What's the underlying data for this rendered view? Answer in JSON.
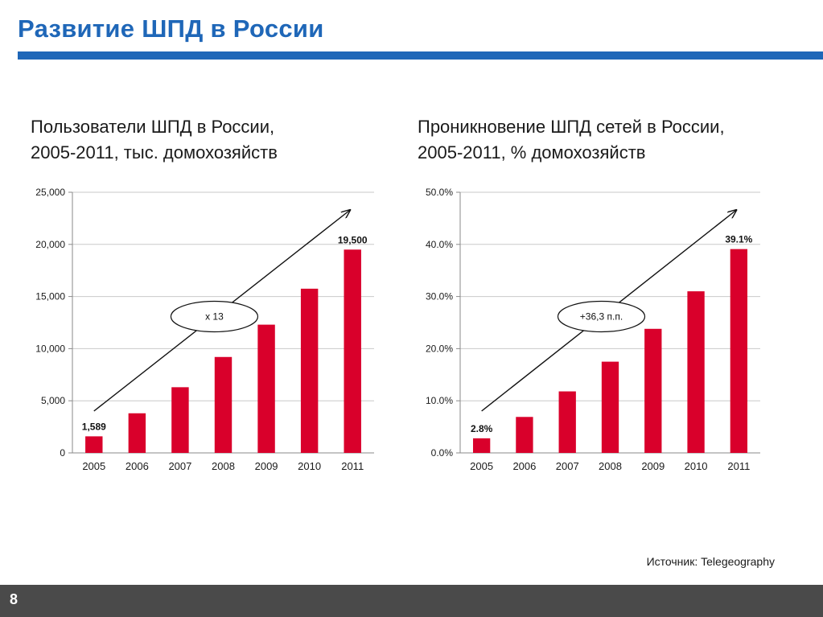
{
  "slide": {
    "title": "Развитие ШПД в России",
    "source": "Источник: Telegeography",
    "page_number": "8"
  },
  "colors": {
    "accent": "#1f67b8",
    "bar": "#d9002b",
    "footer": "#4a4a4a"
  },
  "chart_data": [
    {
      "type": "bar",
      "title_lines": [
        "Пользователи ШПД в России,",
        "2005-2011, тыс. домохозяйств"
      ],
      "categories": [
        "2005",
        "2006",
        "2007",
        "2008",
        "2009",
        "2010",
        "2011"
      ],
      "values": [
        1589,
        3800,
        6300,
        9200,
        12300,
        15750,
        19500
      ],
      "ylim": [
        0,
        25000
      ],
      "yticks": [
        0,
        5000,
        10000,
        15000,
        20000,
        25000
      ],
      "ytick_labels": [
        "0",
        "5,000",
        "10,000",
        "15,000",
        "20,000",
        "25,000"
      ],
      "data_labels": [
        {
          "index": 0,
          "text": "1,589"
        },
        {
          "index": 6,
          "text": "19,500"
        }
      ],
      "annotation": "x 13",
      "grid": true,
      "legend": "none"
    },
    {
      "type": "bar",
      "title_lines": [
        "Проникновение ШПД сетей в России,",
        "2005-2011, % домохозяйств"
      ],
      "categories": [
        "2005",
        "2006",
        "2007",
        "2008",
        "2009",
        "2010",
        "2011"
      ],
      "values": [
        2.8,
        6.9,
        11.8,
        17.5,
        23.8,
        31.0,
        39.1
      ],
      "ylim": [
        0,
        50
      ],
      "yticks": [
        0,
        10,
        20,
        30,
        40,
        50
      ],
      "ytick_labels": [
        "0.0%",
        "10.0%",
        "20.0%",
        "30.0%",
        "40.0%",
        "50.0%"
      ],
      "data_labels": [
        {
          "index": 0,
          "text": "2.8%"
        },
        {
          "index": 6,
          "text": "39.1%"
        }
      ],
      "annotation": "+36,3 п.п.",
      "grid": true,
      "legend": "none"
    }
  ]
}
